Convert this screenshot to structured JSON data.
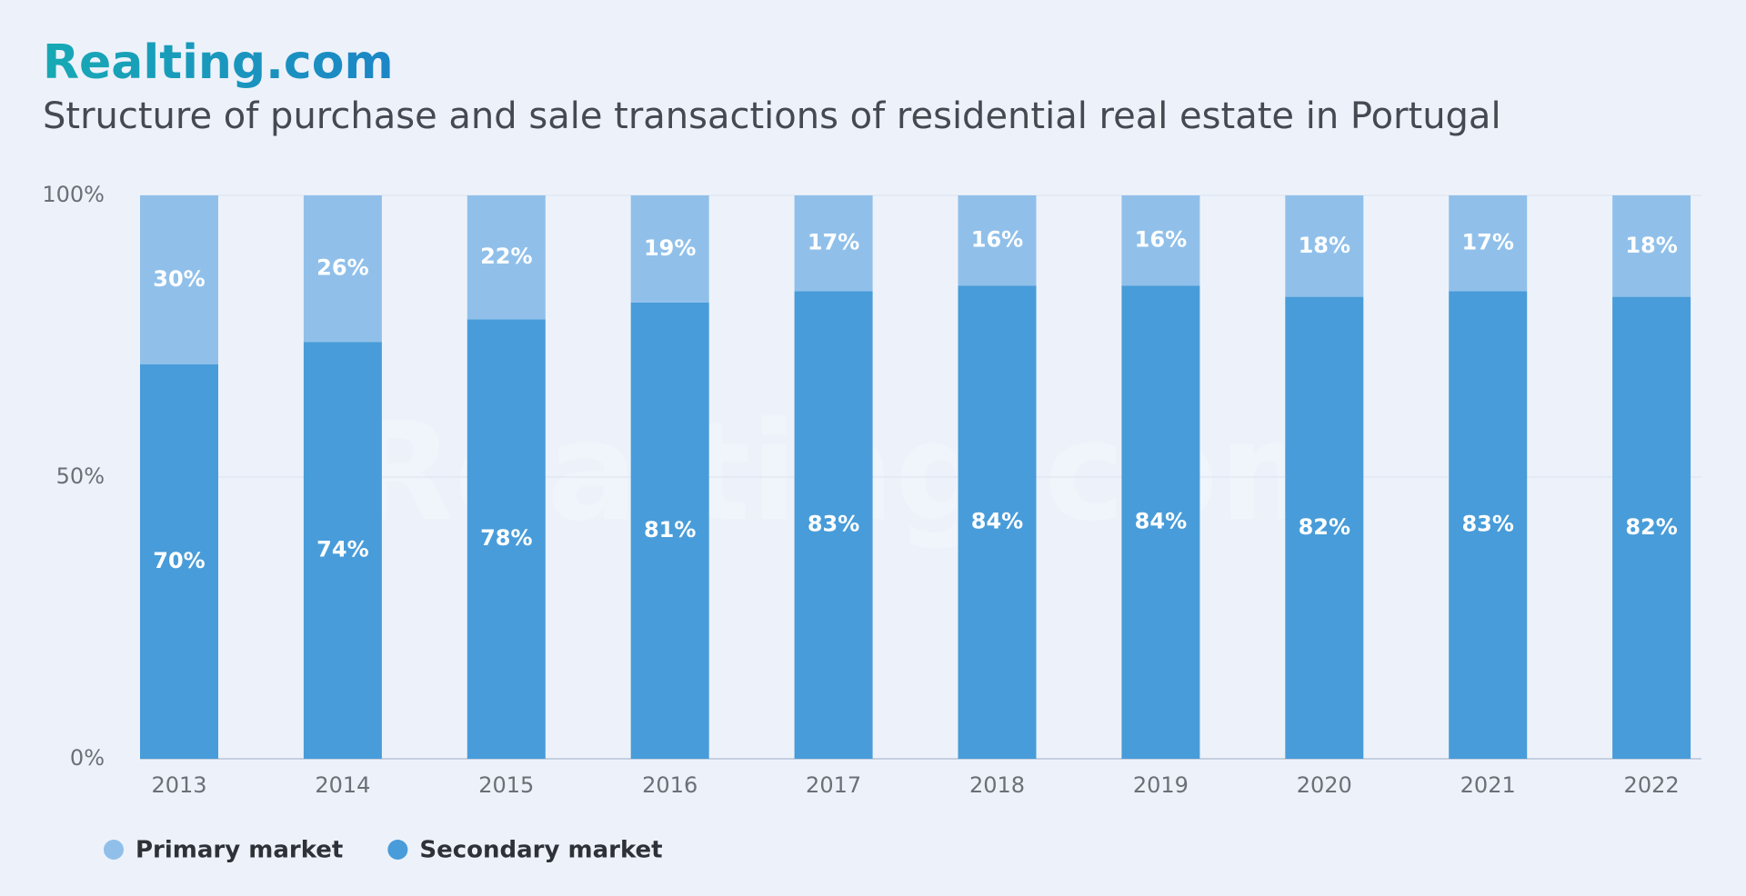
{
  "brand": "Realting.com",
  "watermark": "Realting.com",
  "chart_data": {
    "type": "stacked_bar",
    "title": "Structure of purchase and sale transactions of residential real estate in Portugal",
    "categories": [
      "2013",
      "2014",
      "2015",
      "2016",
      "2017",
      "2018",
      "2019",
      "2020",
      "2021",
      "2022"
    ],
    "series": [
      {
        "name": "Primary market",
        "color": "#90c0ea",
        "values": [
          30,
          26,
          22,
          19,
          17,
          16,
          16,
          18,
          17,
          18
        ],
        "value_labels": [
          "30%",
          "26%",
          "22%",
          "19%",
          "17%",
          "16%",
          "16%",
          "18%",
          "17%",
          "18%"
        ]
      },
      {
        "name": "Secondary market",
        "color": "#489cd9",
        "values": [
          70,
          74,
          78,
          81,
          83,
          84,
          84,
          82,
          83,
          82
        ],
        "value_labels": [
          "70%",
          "74%",
          "78%",
          "81%",
          "83%",
          "84%",
          "84%",
          "82%",
          "83%",
          "82%"
        ]
      }
    ],
    "ylim": [
      0,
      100
    ],
    "yticks": [
      {
        "value": 0,
        "label": "0%"
      },
      {
        "value": 50,
        "label": "50%"
      },
      {
        "value": 100,
        "label": "100%"
      }
    ],
    "grid": true
  }
}
